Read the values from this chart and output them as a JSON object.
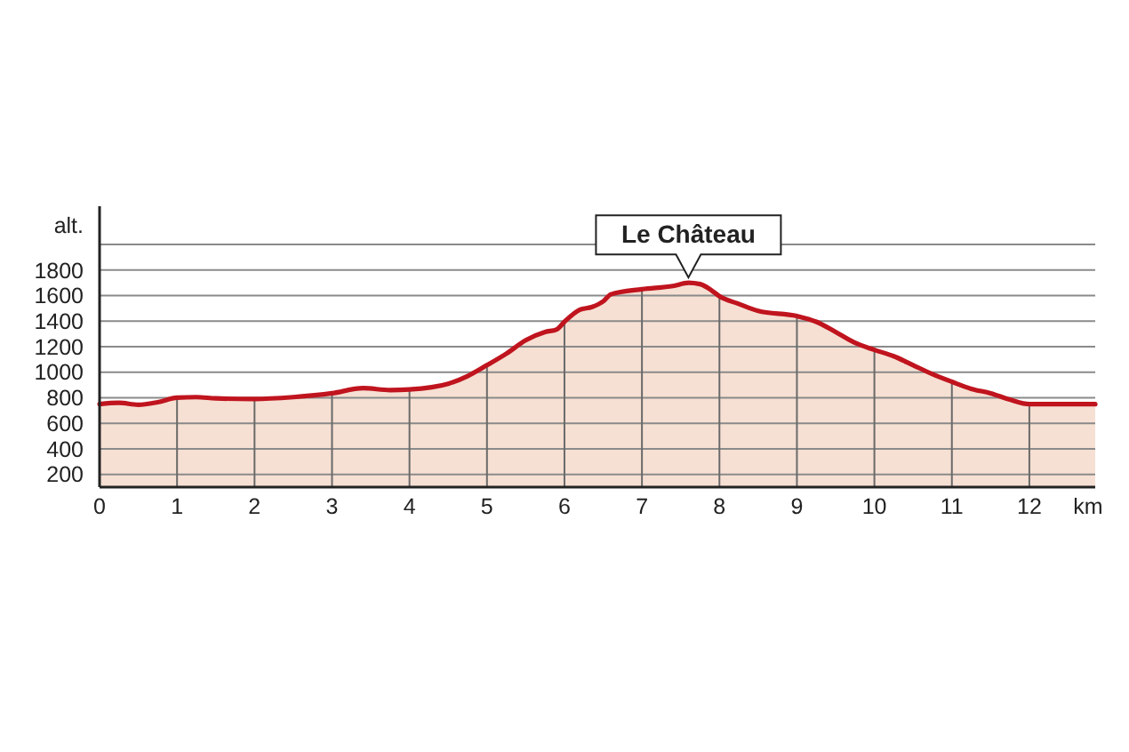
{
  "chart_data": {
    "type": "area",
    "xlabel": "km",
    "ylabel": "alt.",
    "x": [
      0,
      0.25,
      0.5,
      0.75,
      1,
      1.25,
      1.5,
      2,
      2.5,
      3,
      3.4,
      3.75,
      4,
      4.5,
      4.75,
      5,
      5.25,
      5.5,
      5.75,
      5.9,
      6,
      6.2,
      6.35,
      6.5,
      6.6,
      7,
      7.4,
      7.6,
      7.75,
      7.9,
      8,
      8.25,
      8.5,
      9,
      9.25,
      9.5,
      9.75,
      10,
      10.25,
      10.5,
      10.75,
      11,
      11.25,
      11.5,
      11.75,
      12,
      12.25,
      12.5,
      12.85
    ],
    "series": [
      {
        "color": "#c0141e",
        "values": [
          750,
          760,
          745,
          765,
          800,
          805,
          795,
          790,
          805,
          835,
          875,
          860,
          865,
          910,
          970,
          1055,
          1145,
          1250,
          1315,
          1335,
          1395,
          1490,
          1510,
          1555,
          1610,
          1650,
          1675,
          1700,
          1690,
          1640,
          1595,
          1535,
          1480,
          1440,
          1395,
          1315,
          1230,
          1175,
          1125,
          1055,
          985,
          925,
          870,
          835,
          785,
          750,
          750,
          750,
          750
        ]
      }
    ],
    "xlim": [
      0,
      12.85
    ],
    "ylim": [
      100,
      2300
    ],
    "xticks": [
      0,
      1,
      2,
      3,
      4,
      5,
      6,
      7,
      8,
      9,
      10,
      11,
      12
    ],
    "yticks": [
      200,
      400,
      600,
      800,
      1000,
      1200,
      1400,
      1600,
      1800,
      {
        "value": 2000,
        "label": null
      }
    ],
    "grid": true,
    "annotations": [
      {
        "text": "Le Château",
        "x": 7.6,
        "y": 1700
      }
    ]
  }
}
